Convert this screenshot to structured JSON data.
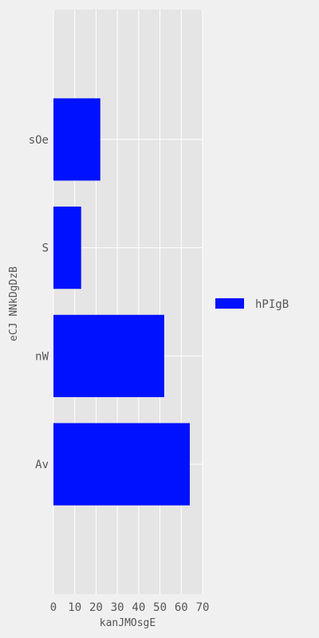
{
  "chart_data": {
    "type": "bar",
    "orientation": "horizontal",
    "categories": [
      "Av",
      "nW",
      "S",
      "sOe"
    ],
    "series": [
      {
        "name": "hPIgB",
        "values": [
          64,
          52,
          13,
          22
        ],
        "color": "#0011ff"
      }
    ],
    "xlabel": "kanJMOsgE",
    "ylabel": "eCJ NNkDgDzB",
    "xlim": [
      0,
      70
    ],
    "xticks": [
      "0",
      "10",
      "20",
      "30",
      "40",
      "50",
      "60",
      "70"
    ],
    "grid": true,
    "legend": "right",
    "background": "#e5e5e5",
    "grid_color": "#ffffff"
  }
}
